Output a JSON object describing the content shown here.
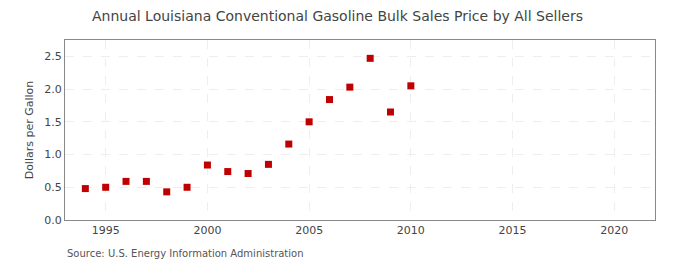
{
  "chart_data": {
    "type": "scatter",
    "title": "Annual Louisiana Conventional Gasoline Bulk Sales Price by All Sellers",
    "ylabel": "Dollars per Gallon",
    "annotation": "Source: U.S. Energy Information Administration",
    "x": [
      1994,
      1995,
      1996,
      1997,
      1998,
      1999,
      2000,
      2001,
      2002,
      2003,
      2004,
      2005,
      2006,
      2007,
      2008,
      2009,
      2010
    ],
    "values": [
      0.48,
      0.5,
      0.59,
      0.59,
      0.43,
      0.5,
      0.84,
      0.74,
      0.71,
      0.85,
      1.16,
      1.5,
      1.84,
      2.03,
      2.47,
      1.65,
      2.05
    ],
    "color": "#c00000",
    "marker": "square",
    "xlim": [
      1993,
      2022
    ],
    "xticks": [
      1995,
      2000,
      2005,
      2010,
      2015,
      2020
    ],
    "ylim": [
      0.0,
      2.75
    ],
    "yticks": [
      {
        "value": 0.0,
        "label": "0.0"
      },
      0.5,
      {
        "value": 1.0,
        "label": "1.0"
      },
      1.5,
      {
        "value": 2.0,
        "label": "2.0"
      },
      2.5
    ],
    "grid": true
  }
}
